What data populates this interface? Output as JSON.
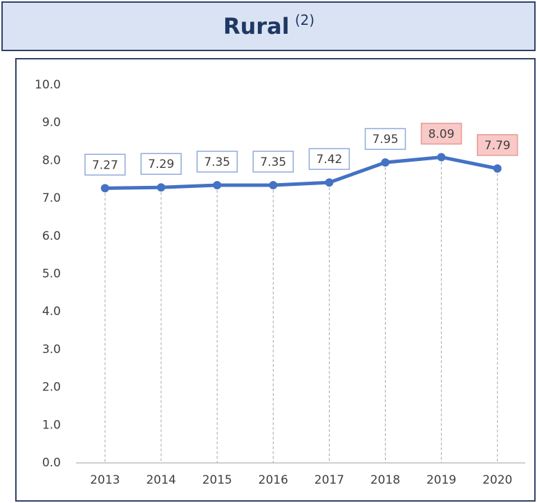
{
  "chart_data": {
    "type": "line",
    "title": "Rural",
    "title_note": "(2)",
    "categories": [
      "2013",
      "2014",
      "2015",
      "2016",
      "2017",
      "2018",
      "2019",
      "2020"
    ],
    "series": [
      {
        "name": "Rural",
        "color": "#4472c4",
        "values": [
          7.27,
          7.29,
          7.35,
          7.35,
          7.42,
          7.95,
          8.09,
          7.79
        ]
      }
    ],
    "label_fills": [
      "#ffffff",
      "#ffffff",
      "#ffffff",
      "#ffffff",
      "#ffffff",
      "#ffffff",
      "#f8c9c6",
      "#f8c9c6"
    ],
    "label_borders": [
      "#8eaadb",
      "#8eaadb",
      "#8eaadb",
      "#8eaadb",
      "#8eaadb",
      "#8eaadb",
      "#e59a95",
      "#e59a95"
    ],
    "ylim": [
      0,
      10
    ],
    "yticks": [
      {
        "value": 0,
        "label": "0.0"
      },
      {
        "value": 1,
        "label": "1.0"
      },
      {
        "value": 2,
        "label": "2.0"
      },
      {
        "value": 3,
        "label": "3.0"
      },
      {
        "value": 4,
        "label": "4.0"
      },
      {
        "value": 5,
        "label": "5.0"
      },
      {
        "value": 6,
        "label": "6.0"
      },
      {
        "value": 7,
        "label": "7.0"
      },
      {
        "value": 8,
        "label": "8.0"
      },
      {
        "value": 9,
        "label": "9.0"
      },
      {
        "value": 10,
        "label": "10.0"
      }
    ],
    "grid": false
  }
}
